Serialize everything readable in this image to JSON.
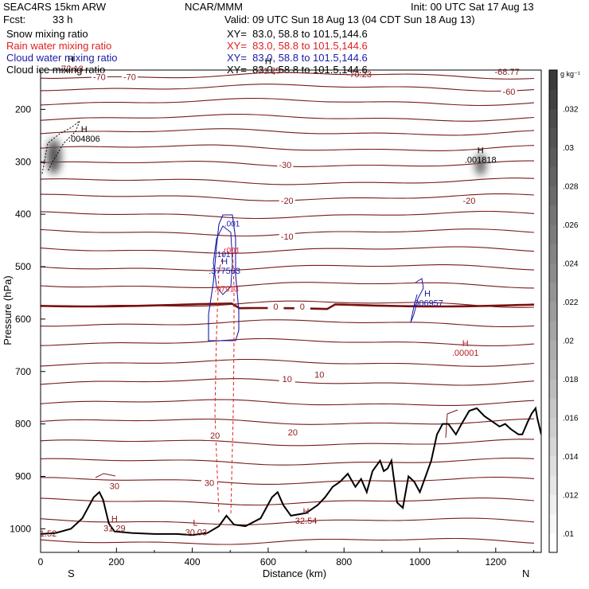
{
  "header": {
    "model": "SEAC4RS 15km ARW",
    "center": "NCAR/MMM",
    "init": "Init: 00 UTC Sat 17 Aug 13",
    "fcst_label": "Fcst:",
    "fcst_value": "33 h",
    "valid": "Valid: 09 UTC Sun 18 Aug 13 (04 CDT Sun 18 Aug 13)"
  },
  "legend": [
    {
      "name": "Snow mixing ratio",
      "xy": "XY=  83.0, 58.8 to 101.5,144.6",
      "color": "#000000"
    },
    {
      "name": "Rain water mixing ratio",
      "xy": "XY=  83.0, 58.8 to 101.5,144.6",
      "color": "#e02020"
    },
    {
      "name": "Cloud water mixing ratio",
      "xy": "XY=  83.0, 58.8 to 101.5,144.6",
      "color": "#1a1aa8"
    },
    {
      "name": "Cloud ice mixing ratio",
      "xy": "XY=  83.0, 58.8 to 101.5,144.6",
      "color": "#000000"
    }
  ],
  "colorbar": {
    "unit": "g kg⁻¹",
    "ticks": [
      ".032",
      ".03",
      ".028",
      ".026",
      ".024",
      ".022",
      ".02",
      ".018",
      ".016",
      ".014",
      ".012",
      ".01"
    ]
  },
  "chart_data": {
    "type": "cross-section",
    "xlabel": "Distance (km)",
    "ylabel": "Pressure (hPa)",
    "x_ticks": [
      "0",
      "200",
      "400",
      "600",
      "800",
      "1000",
      "1200"
    ],
    "y_ticks": [
      "200",
      "300",
      "400",
      "500",
      "600",
      "700",
      "800",
      "900",
      "1000"
    ],
    "xlim": [
      0,
      1320
    ],
    "ylim": [
      1045,
      125
    ],
    "end_labels": {
      "left": "S",
      "right": "N"
    },
    "isotherm_labels": [
      {
        "x": 155,
        "p": 144,
        "text": "-70"
      },
      {
        "x": 235,
        "p": 144,
        "text": "-70"
      },
      {
        "x": 1235,
        "p": 172,
        "text": "-60"
      },
      {
        "x": 645,
        "p": 312,
        "text": "-30"
      },
      {
        "x": 650,
        "p": 380,
        "text": "-20"
      },
      {
        "x": 1130,
        "p": 380,
        "text": "-20"
      },
      {
        "x": 650,
        "p": 448,
        "text": "-10"
      },
      {
        "x": 620,
        "p": 582,
        "text": "0"
      },
      {
        "x": 690,
        "p": 582,
        "text": "0"
      },
      {
        "x": 650,
        "p": 720,
        "text": "10"
      },
      {
        "x": 735,
        "p": 712,
        "text": "10"
      },
      {
        "x": 460,
        "p": 828,
        "text": "20"
      },
      {
        "x": 665,
        "p": 822,
        "text": "20"
      },
      {
        "x": 195,
        "p": 924,
        "text": "30"
      },
      {
        "x": 445,
        "p": 918,
        "text": "30"
      }
    ],
    "extrema": [
      {
        "x": 80,
        "p": 128,
        "kind": "H",
        "value": "-72.13"
      },
      {
        "x": 600,
        "p": 132,
        "kind": "H",
        "value": "-71.25"
      },
      {
        "x": 840,
        "p": 139,
        "kind": "",
        "value": "-70.23"
      },
      {
        "x": 1230,
        "p": 134,
        "kind": "",
        "value": "-68.77"
      },
      {
        "x": 115,
        "p": 262,
        "kind": "H",
        "value": ".004806"
      },
      {
        "x": 1160,
        "p": 302,
        "kind": "H",
        "value": ".001818"
      },
      {
        "x": 485,
        "p": 514,
        "kind": "H",
        "value": ".377563"
      },
      {
        "x": 1020,
        "p": 575,
        "kind": "H",
        "value": ".006957"
      },
      {
        "x": 1120,
        "p": 670,
        "kind": "H",
        "value": ".00001"
      },
      {
        "x": 20,
        "p": 1015,
        "kind": "",
        "value": "1.52"
      },
      {
        "x": 195,
        "p": 1005,
        "kind": "H",
        "value": "31.29"
      },
      {
        "x": 410,
        "p": 1012,
        "kind": "L",
        "value": "30.03"
      },
      {
        "x": 700,
        "p": 990,
        "kind": "H",
        "value": "32.54"
      }
    ],
    "small_labels": [
      {
        "x": 505,
        "p": 423,
        "text": ".001",
        "color": "#1a1aa8"
      },
      {
        "x": 505,
        "p": 474,
        "text": ".001",
        "color": "#e02020"
      },
      {
        "x": 480,
        "p": 482,
        "text": ".101",
        "color": "#1a1aa8"
      },
      {
        "x": 490,
        "p": 548,
        "text": ".07913",
        "color": "#e02020"
      }
    ],
    "terrain": [
      [
        0,
        1010
      ],
      [
        40,
        1008
      ],
      [
        80,
        1000
      ],
      [
        110,
        980
      ],
      [
        140,
        940
      ],
      [
        155,
        930
      ],
      [
        165,
        945
      ],
      [
        180,
        990
      ],
      [
        195,
        1005
      ],
      [
        240,
        1008
      ],
      [
        300,
        1010
      ],
      [
        360,
        1010
      ],
      [
        400,
        1012
      ],
      [
        440,
        1008
      ],
      [
        470,
        995
      ],
      [
        490,
        975
      ],
      [
        510,
        992
      ],
      [
        540,
        995
      ],
      [
        580,
        980
      ],
      [
        610,
        940
      ],
      [
        625,
        930
      ],
      [
        640,
        955
      ],
      [
        660,
        975
      ],
      [
        700,
        970
      ],
      [
        730,
        955
      ],
      [
        750,
        940
      ],
      [
        770,
        920
      ],
      [
        790,
        910
      ],
      [
        810,
        895
      ],
      [
        830,
        920
      ],
      [
        845,
        905
      ],
      [
        860,
        930
      ],
      [
        875,
        890
      ],
      [
        895,
        870
      ],
      [
        905,
        890
      ],
      [
        915,
        885
      ],
      [
        925,
        870
      ],
      [
        940,
        950
      ],
      [
        955,
        960
      ],
      [
        970,
        900
      ],
      [
        985,
        910
      ],
      [
        1000,
        930
      ],
      [
        1015,
        900
      ],
      [
        1030,
        870
      ],
      [
        1045,
        820
      ],
      [
        1060,
        800
      ],
      [
        1075,
        800
      ],
      [
        1095,
        820
      ],
      [
        1110,
        800
      ],
      [
        1130,
        775
      ],
      [
        1150,
        770
      ],
      [
        1170,
        785
      ],
      [
        1190,
        795
      ],
      [
        1210,
        805
      ],
      [
        1225,
        800
      ],
      [
        1240,
        810
      ],
      [
        1260,
        820
      ],
      [
        1270,
        820
      ],
      [
        1285,
        795
      ],
      [
        1295,
        780
      ],
      [
        1305,
        770
      ],
      [
        1310,
        790
      ],
      [
        1320,
        820
      ]
    ],
    "colorbar_scale": {
      "min": 0.009,
      "max": 0.034
    }
  }
}
